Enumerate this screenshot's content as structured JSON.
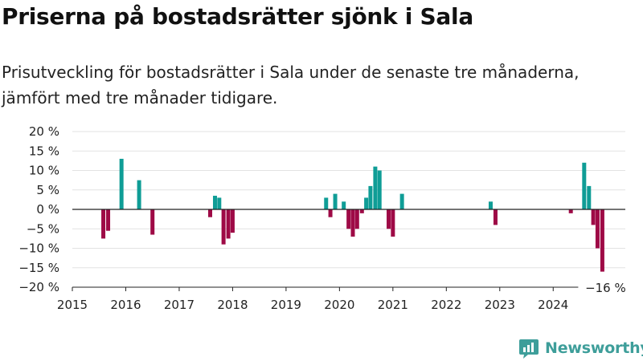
{
  "title": "Priserna på bostadsrätter sjönk i Sala",
  "subtitle": "Prisutveckling för bostadsrätter i Sala under de senaste tre månaderna, jämfört med tre månader tidigare.",
  "logo": {
    "icon": "newsworthy-logo-icon",
    "text": "Newsworthy"
  },
  "colors": {
    "positive": "#0f9d96",
    "negative": "#9e0a46",
    "grid": "#e2e2e2",
    "axis": "#222222"
  },
  "chart_data": {
    "type": "bar",
    "title": "",
    "xlabel": "",
    "ylabel": "",
    "ylim": [
      -20,
      20
    ],
    "xlim": [
      2015.0,
      2025.35
    ],
    "grid": true,
    "y_ticks": [
      "20 %",
      "15 %",
      "10 %",
      "5 %",
      "0 %",
      "−5 %",
      "−10 %",
      "−15 %",
      "−20 %"
    ],
    "y_tick_values": [
      20,
      15,
      10,
      5,
      0,
      -5,
      -10,
      -15,
      -20
    ],
    "x_ticks": [
      "2015",
      "2016",
      "2017",
      "2018",
      "2019",
      "2020",
      "2021",
      "2022",
      "2023",
      "2024"
    ],
    "x_tick_values": [
      2015,
      2016,
      2017,
      2018,
      2019,
      2020,
      2021,
      2022,
      2023,
      2024
    ],
    "annotation": {
      "text": "−16 %",
      "x": 2024.92,
      "value": -16
    },
    "series": [
      {
        "x": [
          2015.58,
          2015.67,
          2015.92,
          2016.25,
          2016.5,
          2017.58,
          2017.67,
          2017.75,
          2017.83,
          2017.92,
          2018.0,
          2019.75,
          2019.83,
          2019.92,
          2020.08,
          2020.17,
          2020.25,
          2020.33,
          2020.42,
          2020.5,
          2020.58,
          2020.67,
          2020.75,
          2020.92,
          2021.0,
          2021.17,
          2022.83,
          2022.92,
          2024.33,
          2024.58,
          2024.67,
          2024.75,
          2024.83,
          2024.92
        ],
        "values": [
          -7.5,
          -5.5,
          13,
          7.5,
          -6.5,
          -2,
          3.5,
          3,
          -9,
          -7.5,
          -6,
          3,
          -2,
          4,
          2,
          -5,
          -7,
          -5,
          -1,
          3,
          6,
          11,
          10,
          -5,
          -7,
          4,
          2,
          -4,
          -1,
          12,
          6,
          -4,
          -10,
          -16
        ]
      }
    ]
  }
}
